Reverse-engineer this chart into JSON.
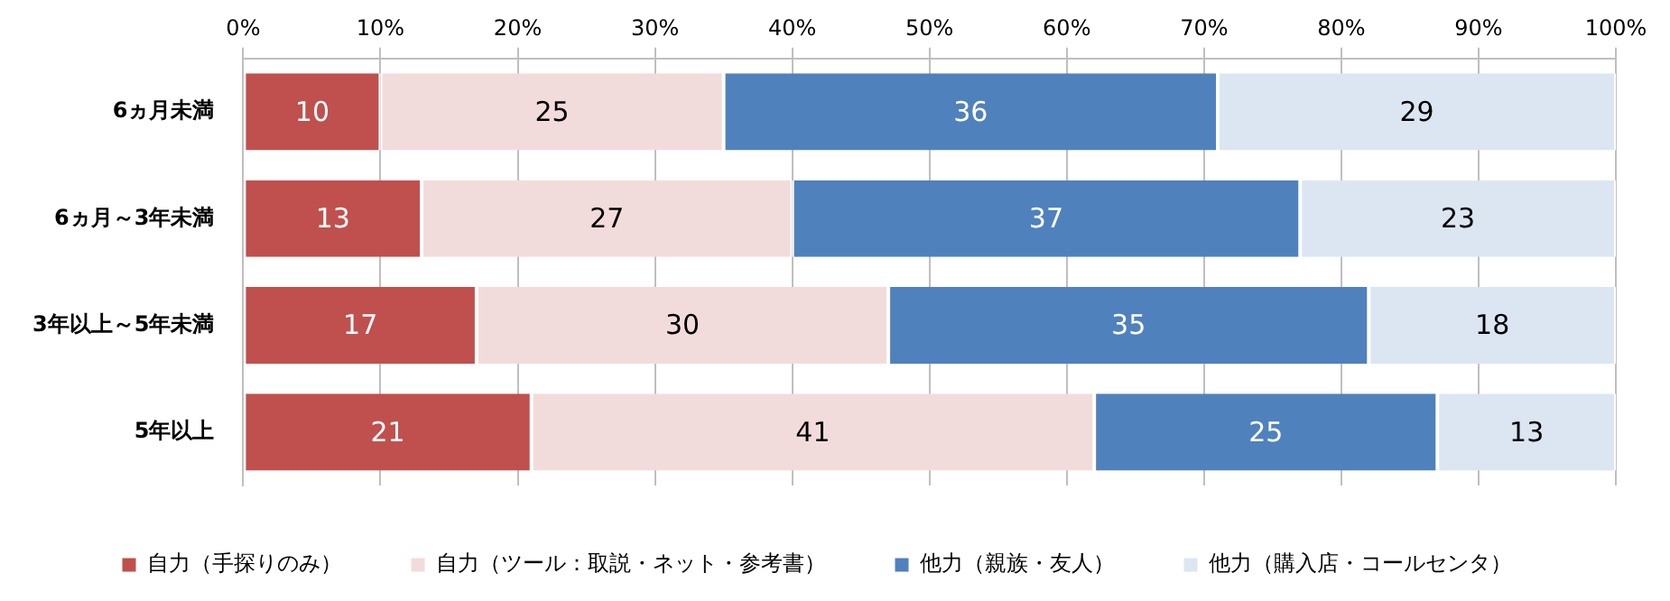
{
  "chart_data": {
    "type": "bar",
    "orientation": "horizontal",
    "stacked": true,
    "data_labels": true,
    "categories": [
      "6ヵ月未満",
      "6ヵ月～3年未満",
      "3年以上～5年未満",
      "5年以上"
    ],
    "series": [
      {
        "name": "自力（手探りのみ）",
        "color": "#c0504d",
        "values": [
          10,
          13,
          17,
          21
        ]
      },
      {
        "name": "自力（ツール：取説・ネット・参考書）",
        "color": "#f2dcdb",
        "values": [
          25,
          27,
          30,
          41
        ]
      },
      {
        "name": "他力（親族・友人）",
        "color": "#4f81bd",
        "values": [
          36,
          37,
          35,
          25
        ]
      },
      {
        "name": "他力（購入店・コールセンタ）",
        "color": "#dce6f2",
        "values": [
          29,
          23,
          18,
          13
        ]
      }
    ],
    "xlim": [
      0,
      100
    ],
    "xticks": [
      {
        "value": 0,
        "label": "0%"
      },
      {
        "value": 10,
        "label": "10%"
      },
      {
        "value": 20,
        "label": "20%"
      },
      {
        "value": 30,
        "label": "30%"
      },
      {
        "value": 40,
        "label": "40%"
      },
      {
        "value": 50,
        "label": "50%"
      },
      {
        "value": 60,
        "label": "60%"
      },
      {
        "value": 70,
        "label": "70%"
      },
      {
        "value": 80,
        "label": "80%"
      },
      {
        "value": 90,
        "label": "90%"
      },
      {
        "value": 100,
        "label": "100%"
      }
    ],
    "grid": "x",
    "legend": "bottom"
  }
}
